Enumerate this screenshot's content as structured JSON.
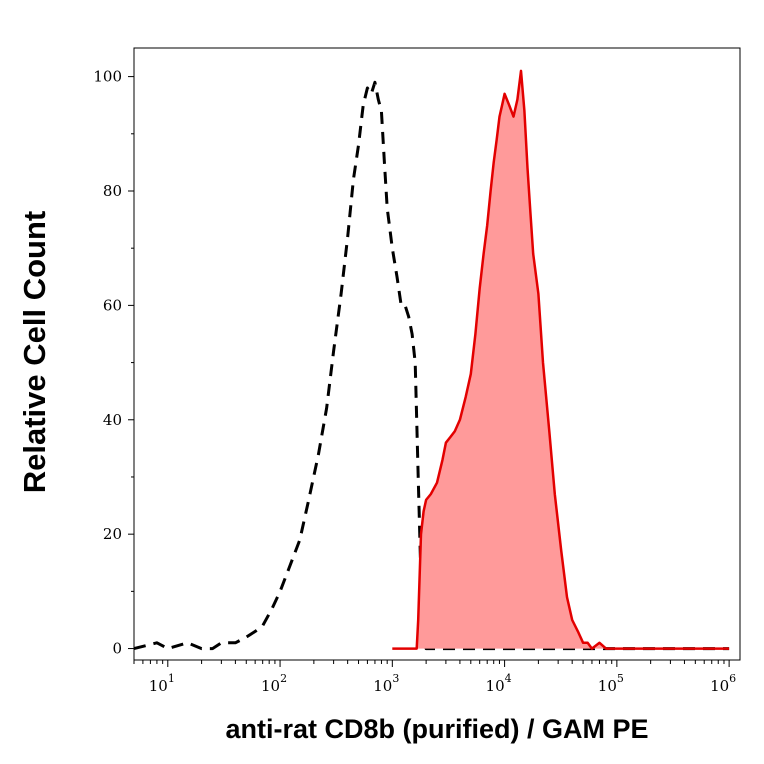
{
  "chart_data": {
    "type": "area",
    "xlabel": "anti-rat CD8b (purified) / GAM PE",
    "ylabel": "Relative Cell Count",
    "xscale": "log",
    "xlim": [
      5,
      1250000
    ],
    "ylim": [
      -2,
      105
    ],
    "grid": false,
    "y_ticks": [
      0,
      20,
      40,
      60,
      80,
      100
    ],
    "x_ticks": [
      {
        "base": "10",
        "exp": "1",
        "value": 10
      },
      {
        "base": "10",
        "exp": "2",
        "value": 100
      },
      {
        "base": "10",
        "exp": "3",
        "value": 1000
      },
      {
        "base": "10",
        "exp": "4",
        "value": 10000
      },
      {
        "base": "10",
        "exp": "5",
        "value": 100000
      },
      {
        "base": "10",
        "exp": "6",
        "value": 1000000
      }
    ],
    "series": [
      {
        "style": "dashed",
        "color": "#000000",
        "fill": "none",
        "x": [
          5,
          8,
          10,
          15,
          20,
          25,
          30,
          40,
          50,
          60,
          70,
          85,
          100,
          120,
          150,
          180,
          220,
          260,
          300,
          350,
          400,
          450,
          500,
          550,
          600,
          650,
          700,
          750,
          800,
          850,
          900,
          1000,
          1100,
          1200,
          1300,
          1400,
          1500,
          1600,
          1700,
          1800,
          1900,
          2000,
          3000,
          5000,
          10000,
          100000,
          1000000
        ],
        "y": [
          0,
          1,
          0,
          1,
          0,
          0,
          1,
          1,
          2,
          3,
          4,
          7,
          10,
          14,
          19,
          26,
          34,
          42,
          52,
          62,
          72,
          82,
          88,
          95,
          98,
          97,
          99,
          96,
          94,
          85,
          77,
          70,
          65,
          60,
          60,
          58,
          55,
          50,
          30,
          12,
          3,
          0,
          0,
          0,
          0,
          0,
          0
        ]
      },
      {
        "style": "solid",
        "color": "#e30000",
        "fill": "#ff9a9a",
        "x": [
          1000,
          1650,
          1700,
          1800,
          1900,
          2000,
          2200,
          2500,
          2800,
          3000,
          3300,
          3600,
          4000,
          4500,
          5000,
          5500,
          6000,
          6500,
          7000,
          7500,
          8000,
          8500,
          9000,
          9500,
          10000,
          11000,
          12000,
          13000,
          14000,
          15000,
          16000,
          17000,
          18000,
          20000,
          22000,
          25000,
          28000,
          32000,
          36000,
          40000,
          45000,
          50000,
          55000,
          60000,
          70000,
          80000,
          1000000
        ],
        "y": [
          0,
          0,
          5,
          20,
          24,
          26,
          27,
          29,
          33,
          36,
          37,
          38,
          40,
          44,
          48,
          55,
          63,
          69,
          74,
          80,
          85,
          89,
          93,
          95,
          97,
          95,
          93,
          96,
          101,
          94,
          84,
          76,
          69,
          62,
          50,
          38,
          27,
          17,
          9,
          5,
          3,
          1,
          1,
          0,
          1,
          0,
          0
        ]
      }
    ]
  }
}
